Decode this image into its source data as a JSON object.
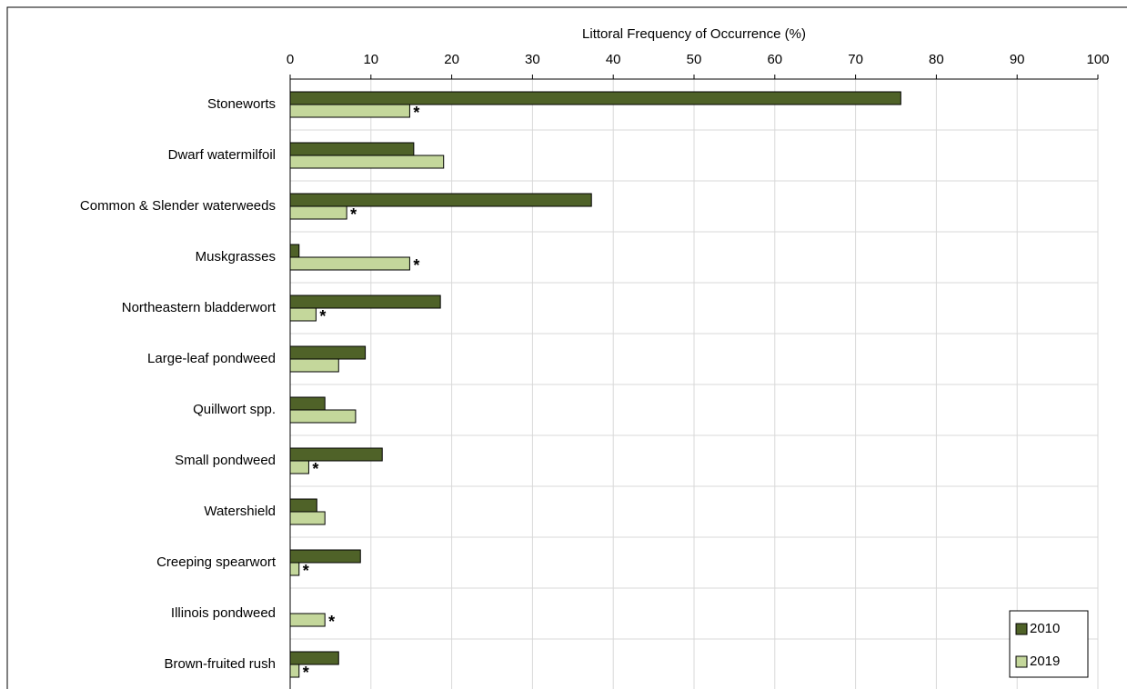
{
  "chart_data": {
    "type": "hbar",
    "x_label": "Littoral Frequency of Occurrence (%)",
    "categories": [
      "Stoneworts",
      "Dwarf watermilfoil",
      "Common & Slender waterweeds",
      "Muskgrasses",
      "Northeastern bladderwort",
      "Large-leaf pondweed",
      "Quillwort spp.",
      "Small pondweed",
      "Watershield",
      "Creeping spearwort",
      "Illinois pondweed",
      "Brown-fruited rush"
    ],
    "series": [
      {
        "name": "2010",
        "color": "#4f6228",
        "values": [
          75.6,
          15.3,
          37.3,
          1.1,
          18.6,
          9.3,
          4.3,
          11.4,
          3.3,
          8.7,
          0,
          6.0
        ]
      },
      {
        "name": "2019",
        "color": "#c4d79b",
        "values": [
          14.8,
          19.0,
          7.0,
          14.8,
          3.2,
          6.0,
          8.1,
          2.3,
          4.3,
          1.1,
          4.3,
          1.1
        ],
        "significance": [
          "*",
          null,
          "*",
          "*",
          "*",
          null,
          null,
          "*",
          null,
          "*",
          "*",
          "*"
        ]
      }
    ],
    "xlim": [
      0,
      100
    ],
    "xticks": [
      0,
      10,
      20,
      30,
      40,
      50,
      60,
      70,
      80,
      90,
      100
    ],
    "grid": true,
    "legend": "bottom-right"
  }
}
